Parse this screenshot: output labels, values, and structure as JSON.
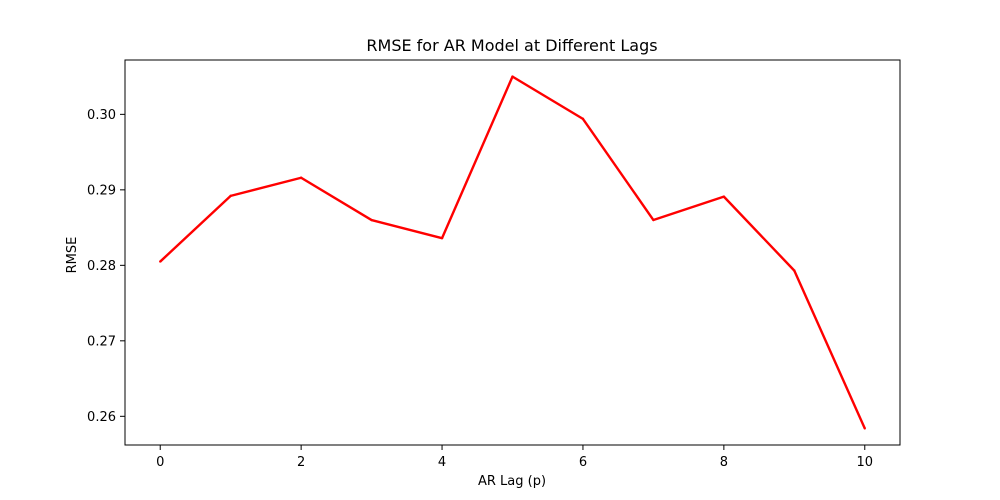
{
  "chart_data": {
    "type": "line",
    "title": "RMSE for AR Model at Different Lags",
    "xlabel": "AR Lag (p)",
    "ylabel": "RMSE",
    "x": [
      0,
      1,
      2,
      3,
      4,
      5,
      6,
      7,
      8,
      9,
      10
    ],
    "series": [
      {
        "values": [
          0.2805,
          0.2892,
          0.2916,
          0.286,
          0.2836,
          0.305,
          0.2994,
          0.286,
          0.2891,
          0.2793,
          0.2584
        ],
        "color": "#ff0000"
      }
    ],
    "xlim": [
      -0.5,
      10.5
    ],
    "ylim": [
      0.2562,
      0.3072
    ],
    "xticks": [
      0,
      2,
      4,
      6,
      8,
      10
    ],
    "xtick_labels": [
      "0",
      "2",
      "4",
      "6",
      "8",
      "10"
    ],
    "yticks": [
      0.26,
      0.27,
      0.28,
      0.29,
      0.3
    ],
    "ytick_labels": [
      "0.26",
      "0.27",
      "0.28",
      "0.29",
      "0.30"
    ],
    "grid": false,
    "legend": false
  }
}
